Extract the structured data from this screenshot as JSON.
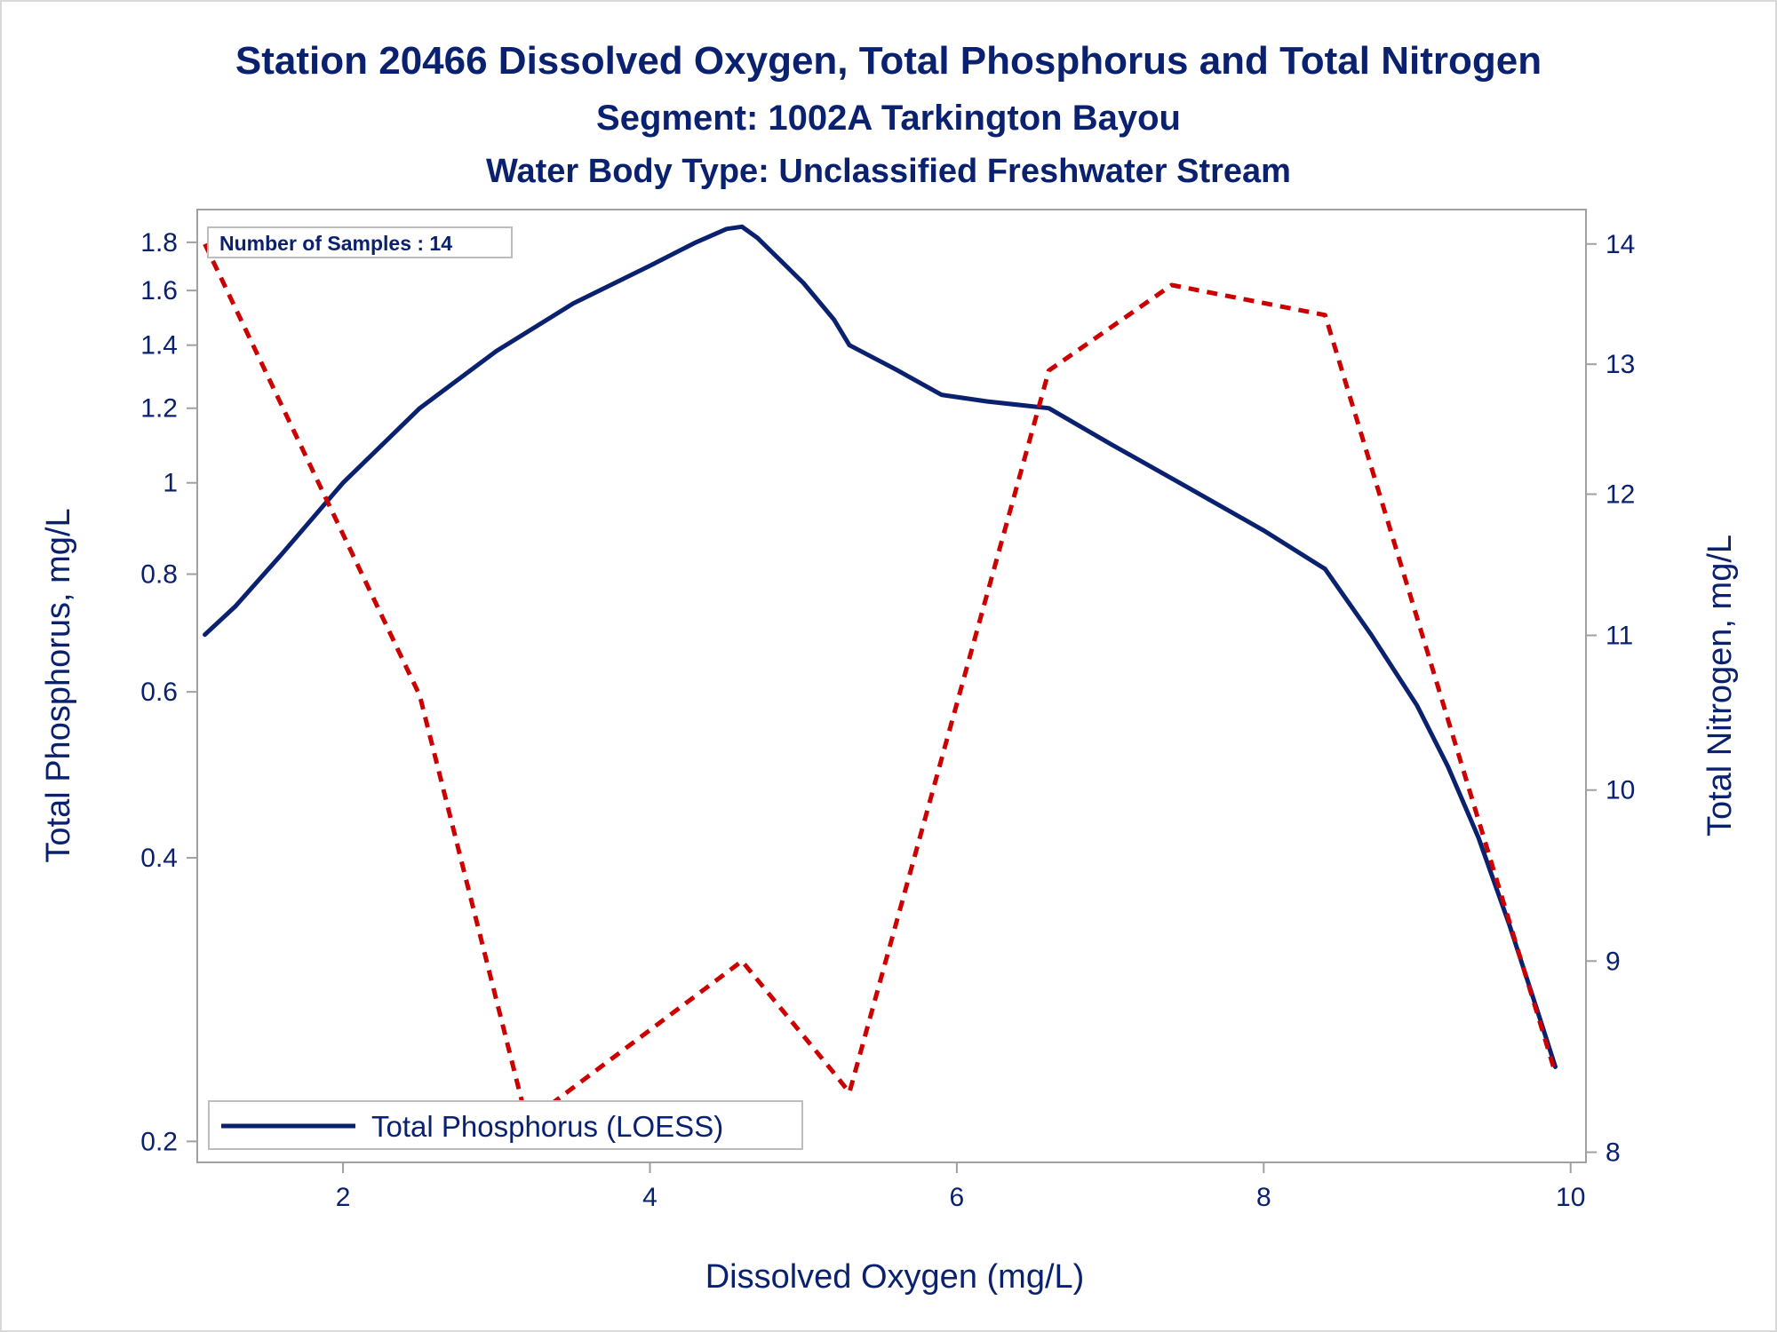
{
  "chart_data": {
    "type": "line",
    "title": "Station 20466  Dissolved Oxygen, Total Phosphorus and Total Nitrogen",
    "subtitle": "Segment: 1002A  Tarkington Bayou",
    "subtitle2": "Water Body Type: Unclassified Freshwater Stream",
    "xlabel": "Dissolved Oxygen (mg/L)",
    "ylabel": "Total Phosphorus, mg/L",
    "y2label": "Total Nitrogen, mg/L",
    "xlim": [
      1.05,
      10.1
    ],
    "ylim": [
      0.19,
      1.95
    ],
    "yscale": "log",
    "y2lim": [
      7.95,
      14.3
    ],
    "y2scale": "log",
    "xticks": [
      2,
      4,
      6,
      8,
      10
    ],
    "yticks": [
      0.2,
      0.4,
      0.6,
      0.8,
      1,
      1.2,
      1.4,
      1.6,
      1.8
    ],
    "y2ticks": [
      8,
      9,
      10,
      11,
      12,
      13,
      14
    ],
    "annotation": "Number of Samples : 14",
    "legend": {
      "label": "Total Phosphorus (LOESS)",
      "position": "bottom-left"
    },
    "colors": {
      "phosphorus": "#0a2170",
      "nitrogen": "#cc0000",
      "text": "#0a2170",
      "frame": "#a0a0a0"
    },
    "series": [
      {
        "name": "Total Phosphorus (LOESS)",
        "axis": "left",
        "style": "solid",
        "x": [
          1.1,
          1.3,
          1.6,
          2.0,
          2.5,
          3.0,
          3.5,
          4.0,
          4.3,
          4.5,
          4.6,
          4.7,
          5.0,
          5.2,
          5.3,
          5.6,
          5.9,
          6.2,
          6.6,
          7.0,
          7.5,
          8.0,
          8.4,
          8.7,
          9.0,
          9.2,
          9.4,
          9.6,
          9.8,
          9.9
        ],
        "y": [
          0.69,
          0.74,
          0.84,
          1.0,
          1.2,
          1.38,
          1.55,
          1.7,
          1.8,
          1.86,
          1.87,
          1.82,
          1.63,
          1.49,
          1.4,
          1.32,
          1.24,
          1.22,
          1.2,
          1.1,
          0.99,
          0.89,
          0.81,
          0.69,
          0.58,
          0.5,
          0.42,
          0.34,
          0.27,
          0.24
        ]
      },
      {
        "name": "Total Nitrogen",
        "axis": "right",
        "style": "dashed",
        "x": [
          1.1,
          2.5,
          3.2,
          4.6,
          5.2,
          5.3,
          6.6,
          7.4,
          8.4,
          9.9
        ],
        "y": [
          14.0,
          10.6,
          8.15,
          9.0,
          8.4,
          8.3,
          12.95,
          13.65,
          13.4,
          8.4
        ]
      }
    ]
  }
}
